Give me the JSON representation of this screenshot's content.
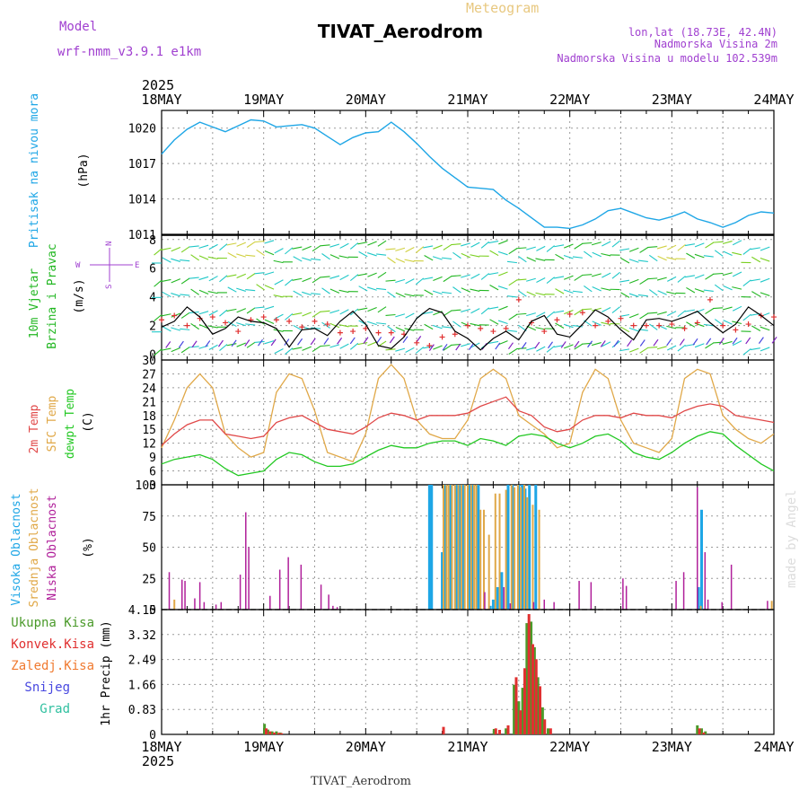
{
  "header": {
    "meteogram_label": "Meteogram",
    "station": "TIVAT_Aerodrom",
    "model_label": "Model",
    "model_name": "wrf-nmm_v3.9.1 e1km",
    "lonlat": "lon,lat (18.73E, 42.4N)",
    "elevation": "Nadmorska Visina 2m",
    "model_elevation": "Nadmorska Visina u modelu 102.539m",
    "credit": "made by Angel",
    "bottom_station": "TIVAT_Aerodrom"
  },
  "colors": {
    "pressure": "#1ea6e6",
    "wind": "#22b722",
    "temp2m": "#e04848",
    "sfc": "#e0a848",
    "dewpt": "#22c822",
    "high_cloud": "#1ea6e6",
    "mid_cloud": "#e0a848",
    "low_cloud": "#b0209a",
    "total_precip": "#4a9a2a",
    "conv_precip": "#e03030",
    "frz_precip": "#f07a30",
    "snow": "#4848e0",
    "grad": "#30c0a0",
    "title_gold": "#e8c880",
    "purple": "#a040d0"
  },
  "time_axis": {
    "year": "2025",
    "days": [
      "18MAY",
      "19MAY",
      "20MAY",
      "21MAY",
      "22MAY",
      "23MAY",
      "24MAY"
    ]
  },
  "chart_data": [
    {
      "type": "line",
      "panel": "pressure",
      "ylabel": "Pritisak na nivou mora",
      "units": "(hPa)",
      "yticks": [
        "1011",
        "1014",
        "1017",
        "1020"
      ],
      "ylim": [
        1011,
        1021.5
      ],
      "xlim": [
        0,
        144
      ],
      "x_hours": [
        0,
        3,
        6,
        9,
        12,
        15,
        18,
        21,
        24,
        27,
        30,
        33,
        36,
        39,
        42,
        45,
        48,
        51,
        54,
        57,
        60,
        63,
        66,
        69,
        72,
        75,
        78,
        81,
        84,
        87,
        90,
        93,
        96,
        99,
        102,
        105,
        108,
        111,
        114,
        117,
        120,
        123,
        126,
        129,
        132,
        135,
        138,
        141,
        144
      ],
      "values": [
        1017.8,
        1019.0,
        1019.9,
        1020.5,
        1020.1,
        1019.7,
        1020.2,
        1020.7,
        1020.6,
        1020.1,
        1020.2,
        1020.3,
        1020.0,
        1019.3,
        1018.6,
        1019.2,
        1019.6,
        1019.7,
        1020.5,
        1019.7,
        1018.7,
        1017.6,
        1016.6,
        1015.8,
        1015.0,
        1014.9,
        1014.8,
        1013.9,
        1013.2,
        1012.4,
        1011.6,
        1011.6,
        1011.5,
        1011.8,
        1012.3,
        1013.0,
        1013.2,
        1012.8,
        1012.4,
        1012.2,
        1012.5,
        1012.9,
        1012.3,
        1012.0,
        1011.6,
        1012.0,
        1012.6,
        1012.9,
        1012.8
      ]
    },
    {
      "type": "line",
      "panel": "wind",
      "ylabel": "10m Vjetar",
      "ylabel2": "Brzina i Pravac",
      "units": "(m/s)",
      "compass_n": "N",
      "compass_s": "S",
      "compass_w": "W",
      "compass_e": "E",
      "yticks": [
        "0",
        "2",
        "4",
        "6",
        "8"
      ],
      "ylim": [
        -0.4,
        8.3
      ],
      "xlim": [
        0,
        144
      ],
      "x_hours": [
        0,
        3,
        6,
        9,
        12,
        15,
        18,
        21,
        24,
        27,
        30,
        33,
        36,
        39,
        42,
        45,
        48,
        51,
        54,
        57,
        60,
        63,
        66,
        69,
        72,
        75,
        78,
        81,
        84,
        87,
        90,
        93,
        96,
        99,
        102,
        105,
        108,
        111,
        114,
        117,
        120,
        123,
        126,
        129,
        132,
        135,
        138,
        141,
        144
      ],
      "series": [
        {
          "name": "speed",
          "values": [
            1.9,
            2.3,
            3.3,
            2.6,
            1.4,
            1.8,
            2.6,
            2.3,
            2.2,
            1.8,
            0.5,
            1.7,
            1.8,
            1.3,
            2.3,
            3.0,
            2.1,
            0.6,
            0.4,
            1.2,
            2.5,
            3.2,
            2.9,
            1.6,
            1.1,
            0.3,
            1.1,
            1.6,
            1.0,
            2.3,
            2.7,
            1.4,
            1.2,
            2.1,
            3.1,
            2.6,
            1.7,
            1.0,
            2.4,
            2.5,
            2.3,
            2.6,
            3.0,
            2.2,
            1.5,
            2.1,
            3.3,
            2.7,
            2.0
          ]
        },
        {
          "name": "gust",
          "values": [
            2.4,
            2.7,
            2.0,
            2.5,
            2.6,
            2.2,
            1.6,
            2.4,
            2.6,
            2.4,
            2.3,
            1.9,
            2.3,
            2.1,
            1.5,
            1.6,
            1.8,
            1.5,
            1.5,
            1.4,
            0.8,
            0.6,
            1.2,
            1.4,
            2.0,
            1.8,
            1.6,
            1.8,
            3.8,
            2.2,
            1.6,
            2.4,
            2.8,
            2.9,
            2.0,
            2.3,
            2.5,
            2.0,
            2.0,
            2.0,
            2.1,
            1.8,
            2.2,
            3.8,
            2.0,
            1.7,
            2.1,
            2.7,
            2.6
          ]
        }
      ]
    },
    {
      "type": "line",
      "panel": "temperature",
      "ylabel": "2m Temp",
      "ylabel2": "SFC Temp",
      "ylabel3": "dewpt Temp",
      "units": "(C)",
      "yticks": [
        "3",
        "6",
        "9",
        "12",
        "15",
        "18",
        "21",
        "24",
        "27",
        "30"
      ],
      "ylim": [
        3,
        30
      ],
      "xlim": [
        0,
        144
      ],
      "x_hours": [
        0,
        3,
        6,
        9,
        12,
        15,
        18,
        21,
        24,
        27,
        30,
        33,
        36,
        39,
        42,
        45,
        48,
        51,
        54,
        57,
        60,
        63,
        66,
        69,
        72,
        75,
        78,
        81,
        84,
        87,
        90,
        93,
        96,
        99,
        102,
        105,
        108,
        111,
        114,
        117,
        120,
        123,
        126,
        129,
        132,
        135,
        138,
        141,
        144
      ],
      "series": [
        {
          "name": "2m Temp",
          "values": [
            11.5,
            14.0,
            16.0,
            17.0,
            17.0,
            14.0,
            13.5,
            13.0,
            13.5,
            16.5,
            17.5,
            18.0,
            16.5,
            15.0,
            14.5,
            14.0,
            15.5,
            17.5,
            18.5,
            18.0,
            17.0,
            18.0,
            18.0,
            18.0,
            18.5,
            20.0,
            21.0,
            22.0,
            19.0,
            18.0,
            15.5,
            14.5,
            15.0,
            17.0,
            18.0,
            18.0,
            17.5,
            18.5,
            18.0,
            18.0,
            17.5,
            19.0,
            20.0,
            20.5,
            20.0,
            18.0,
            17.5,
            17.0,
            16.5
          ]
        },
        {
          "name": "SFC Temp",
          "values": [
            11.0,
            17.0,
            24.0,
            27.0,
            24.0,
            14.0,
            11.0,
            9.0,
            10.0,
            23.0,
            27.0,
            26.0,
            19.0,
            10.0,
            9.0,
            8.0,
            14.0,
            26.0,
            29.0,
            26.0,
            17.0,
            14.0,
            13.0,
            13.0,
            17.0,
            26.0,
            28.0,
            26.0,
            18.0,
            16.0,
            14.0,
            11.0,
            12.0,
            23.0,
            28.0,
            26.0,
            17.0,
            12.0,
            11.0,
            10.0,
            13.0,
            26.0,
            28.0,
            27.0,
            18.0,
            15.0,
            13.0,
            12.0,
            14.0
          ]
        },
        {
          "name": "dewpt Temp",
          "values": [
            7.5,
            8.5,
            9.0,
            9.5,
            8.5,
            6.5,
            5.0,
            5.5,
            6.0,
            8.5,
            10.0,
            9.5,
            8.0,
            7.0,
            7.0,
            7.5,
            9.0,
            10.5,
            11.5,
            11.0,
            11.0,
            12.0,
            12.5,
            12.5,
            11.5,
            13.0,
            12.5,
            11.5,
            13.5,
            14.0,
            13.5,
            12.0,
            11.0,
            12.0,
            13.5,
            14.0,
            12.5,
            10.0,
            9.0,
            8.5,
            10.0,
            12.0,
            13.5,
            14.5,
            14.0,
            11.5,
            9.5,
            7.5,
            6.0
          ]
        }
      ]
    },
    {
      "type": "bar",
      "panel": "cloud",
      "ylabel": "Visoka Oblacnost",
      "ylabel2": "Srednja Oblacnost",
      "ylabel3": "Niska Oblacnost",
      "units": "(%)",
      "yticks": [
        "0",
        "25",
        "50",
        "75",
        "100"
      ],
      "ylim": [
        0,
        100
      ],
      "xlim": [
        0,
        144
      ],
      "series": [
        {
          "name": "Visoka Oblacnost",
          "x_hours": [
            63.0,
            63.5,
            66.0,
            66.8,
            68.0,
            69.3,
            70.0,
            71.0,
            72.3,
            73.0,
            74.5,
            77.3,
            78.0,
            79.0,
            80.0,
            81.5,
            82.5,
            84.0,
            84.8,
            85.5,
            86.5,
            88.0,
            126.3,
            127.0
          ],
          "values": [
            100,
            100,
            46,
            100,
            100,
            100,
            100,
            100,
            100,
            100,
            100,
            3,
            8,
            18,
            30,
            100,
            100,
            100,
            100,
            97,
            100,
            100,
            18,
            80
          ]
        },
        {
          "name": "Srednja Oblacnost",
          "x_hours": [
            3.0,
            66.3,
            67.0,
            67.5,
            68.3,
            69.0,
            69.8,
            70.5,
            71.3,
            72.0,
            72.8,
            73.5,
            74.0,
            75.0,
            75.8,
            77.0,
            78.5,
            79.5,
            81.0,
            82.3,
            83.0,
            83.8,
            84.5,
            85.3,
            86.0,
            87.3,
            88.8,
            126.8,
            143.5
          ],
          "values": [
            8,
            100,
            100,
            100,
            100,
            100,
            100,
            100,
            100,
            100,
            100,
            100,
            100,
            80,
            80,
            60,
            93,
            93,
            96,
            100,
            98,
            100,
            98,
            100,
            90,
            84,
            80,
            3,
            7
          ]
        },
        {
          "name": "Niska Oblacnost",
          "x_hours": [
            1.8,
            4.8,
            5.5,
            7.8,
            9.0,
            10.0,
            12.8,
            14.0,
            18.5,
            19.8,
            20.5,
            25.5,
            27.8,
            29.8,
            32.8,
            37.5,
            39.3,
            40.3,
            41.3,
            76.0,
            80.5,
            82.0,
            87.5,
            90.0,
            92.3,
            98.2,
            101.0,
            108.5,
            109.3,
            121.0,
            122.8,
            126.0,
            127.8,
            128.5,
            131.8,
            134.0,
            142.5
          ],
          "values": [
            30,
            24,
            23,
            9,
            22,
            6,
            4,
            6,
            28,
            78,
            50,
            11,
            32,
            42,
            36,
            20,
            12,
            3,
            2,
            14,
            18,
            5,
            6,
            8,
            6,
            23,
            22,
            25,
            19,
            23,
            30,
            98,
            46,
            8,
            6,
            36,
            7
          ]
        }
      ]
    },
    {
      "type": "bar",
      "panel": "precip",
      "ylabel": "1hr Precip (mm)",
      "legend": [
        "Ukupna Kisa",
        "Konvek.Kisa",
        "Zaledj.Kisa",
        "Snijeg",
        "Grad"
      ],
      "yticks": [
        "0",
        "0.83",
        "1.66",
        "2.49",
        "3.32",
        "4.15"
      ],
      "ylim": [
        0,
        4.15
      ],
      "xlim": [
        0,
        144
      ],
      "series": [
        {
          "name": "Ukupna Kisa",
          "x_hours": [
            24.2,
            25.0,
            26.0,
            27.0,
            27.9,
            78.2,
            81.0,
            82.9,
            84.0,
            84.9,
            85.9,
            86.9,
            87.7,
            88.5,
            89.6,
            90.9,
            126.0,
            127.0,
            127.9
          ],
          "values": [
            0.35,
            0.16,
            0.1,
            0.1,
            0.06,
            0.18,
            0.2,
            1.65,
            1.1,
            1.55,
            3.7,
            3.75,
            2.9,
            1.9,
            0.9,
            0.2,
            0.3,
            0.2,
            0.1
          ]
        },
        {
          "name": "Konvek.Kisa",
          "x_hours": [
            24.6,
            25.5,
            26.5,
            27.5,
            28.2,
            66.3,
            78.6,
            79.5,
            81.5,
            83.4,
            84.4,
            85.4,
            86.4,
            87.3,
            88.1,
            89.0,
            90.1,
            91.5,
            126.5,
            127.5
          ],
          "values": [
            0.2,
            0.1,
            0.06,
            0.05,
            0.04,
            0.25,
            0.2,
            0.15,
            0.3,
            1.9,
            0.8,
            2.2,
            4.0,
            3.0,
            2.5,
            1.6,
            0.5,
            0.2,
            0.2,
            0.06
          ]
        }
      ]
    }
  ]
}
